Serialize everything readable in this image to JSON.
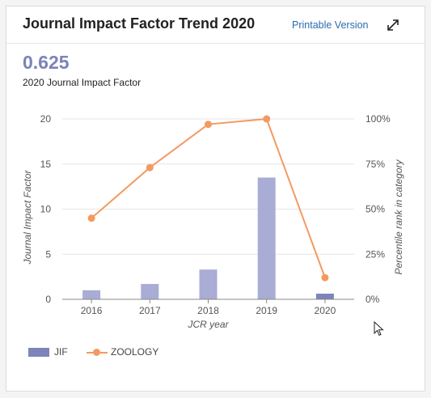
{
  "header": {
    "title": "Journal Impact Factor Trend 2020",
    "printable_label": "Printable Version",
    "expand_icon": "expand-arrows-icon"
  },
  "summary": {
    "value": "0.625",
    "label": "2020 Journal Impact Factor"
  },
  "chart_data": {
    "type": "bar+line",
    "categories": [
      "2016",
      "2017",
      "2018",
      "2019",
      "2020"
    ],
    "xlabel": "JCR year",
    "ylabel": "Journal Impact Factor",
    "y2label": "Percentile rank in category",
    "ylim": [
      0,
      20
    ],
    "y2lim": [
      0,
      100
    ],
    "yticks": [
      "0",
      "5",
      "10",
      "15",
      "20"
    ],
    "y2ticks": [
      "0%",
      "25%",
      "50%",
      "75%",
      "100%"
    ],
    "grid": true,
    "legend_position": "bottom-left",
    "series": [
      {
        "name": "JIF",
        "type": "bar",
        "axis": "left",
        "color": "#a9acd4",
        "values": [
          1.0,
          1.7,
          3.3,
          13.5,
          0.625
        ]
      },
      {
        "name": "ZOOLOGY",
        "type": "line",
        "axis": "right",
        "color": "#f39a62",
        "values": [
          45,
          73,
          97,
          100,
          12
        ]
      }
    ]
  },
  "legend": {
    "jif_label": "JIF",
    "zoology_label": "ZOOLOGY"
  }
}
